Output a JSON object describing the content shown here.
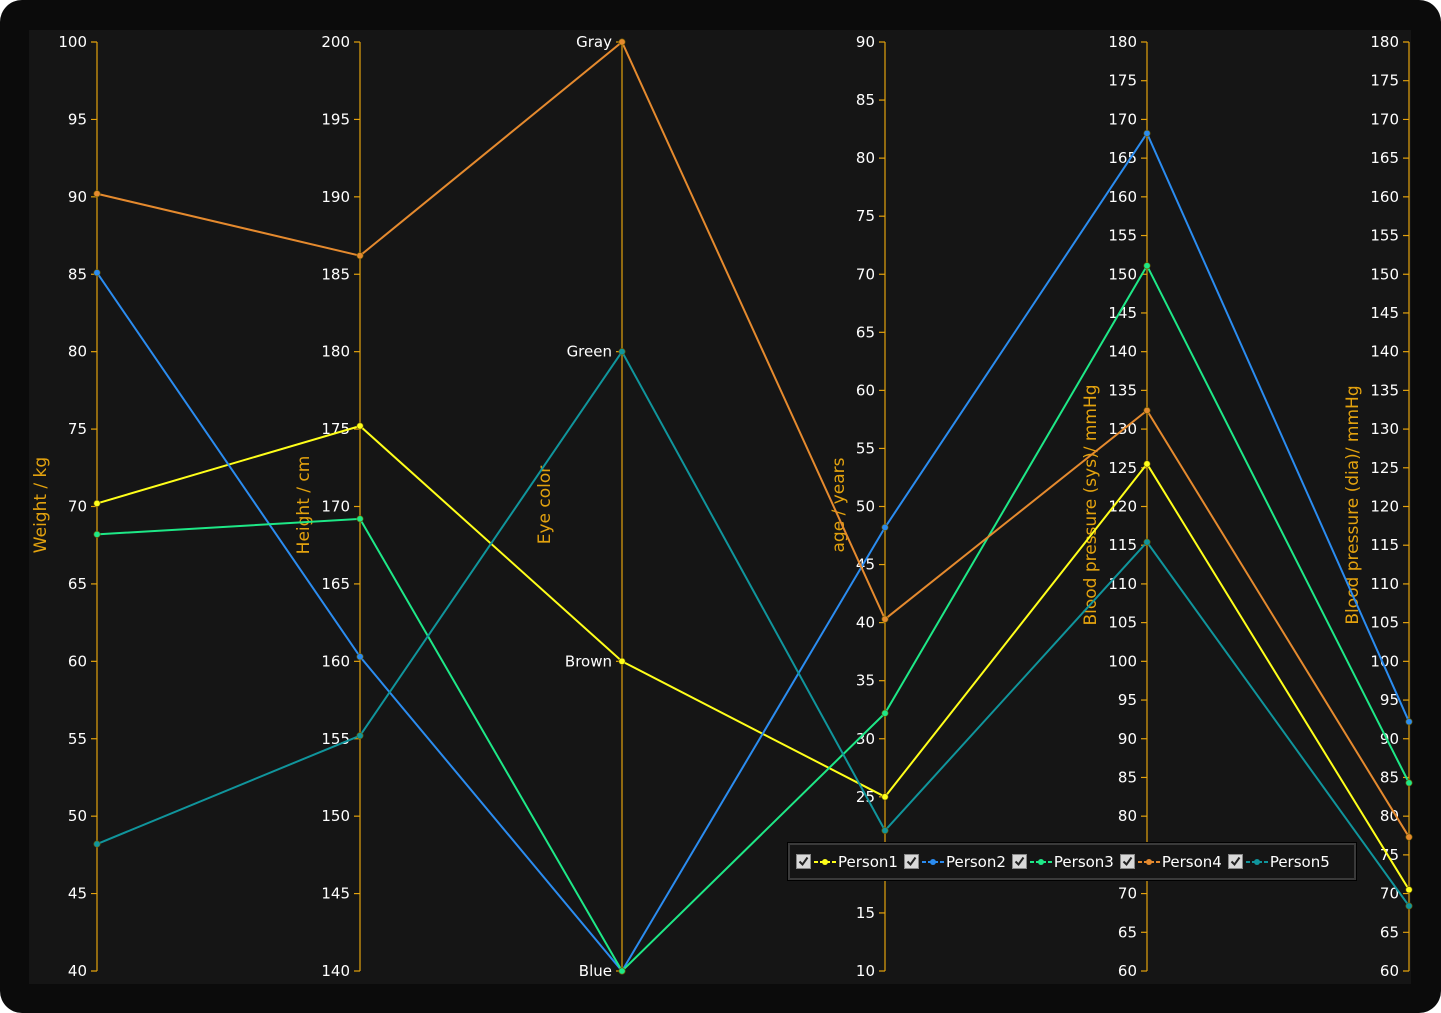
{
  "chart_data": {
    "type": "parallel-coordinates",
    "title": "",
    "axes": [
      {
        "title": "Weight / kg",
        "min": 40,
        "max": 100,
        "ticks": [
          "40",
          "45",
          "50",
          "55",
          "60",
          "65",
          "70",
          "75",
          "80",
          "85",
          "90",
          "95",
          "100"
        ]
      },
      {
        "title": "Height / cm",
        "min": 140,
        "max": 200,
        "ticks": [
          "140",
          "145",
          "150",
          "155",
          "160",
          "165",
          "170",
          "175",
          "180",
          "185",
          "190",
          "195",
          "200"
        ]
      },
      {
        "title": "Eye color",
        "categorical": true,
        "categories": [
          "Blue",
          "Brown",
          "Green",
          "Gray"
        ]
      },
      {
        "title": "age / years",
        "min": 10,
        "max": 90,
        "ticks": [
          "10",
          "15",
          "20",
          "25",
          "30",
          "35",
          "40",
          "45",
          "50",
          "55",
          "60",
          "65",
          "70",
          "75",
          "80",
          "85",
          "90"
        ]
      },
      {
        "title": "Blood pressure (sys)/ mmHg",
        "min": 60,
        "max": 180,
        "ticks": [
          "60",
          "65",
          "70",
          "75",
          "80",
          "85",
          "90",
          "95",
          "100",
          "105",
          "110",
          "115",
          "120",
          "125",
          "130",
          "135",
          "140",
          "145",
          "150",
          "155",
          "160",
          "165",
          "170",
          "175",
          "180"
        ]
      },
      {
        "title": "Blood pressure (dia)/ mmHg",
        "min": 60,
        "max": 180,
        "ticks": [
          "60",
          "65",
          "70",
          "75",
          "80",
          "85",
          "90",
          "95",
          "100",
          "105",
          "110",
          "115",
          "120",
          "125",
          "130",
          "135",
          "140",
          "145",
          "150",
          "155",
          "160",
          "165",
          "170",
          "175",
          "180"
        ]
      }
    ],
    "series": [
      {
        "name": "Person1",
        "color": "#ffff1a",
        "values": [
          70.2,
          175.2,
          "Brown",
          25,
          125.5,
          70.5
        ]
      },
      {
        "name": "Person2",
        "color": "#2b8cf0",
        "values": [
          85.1,
          160.3,
          "Blue",
          48.2,
          168.2,
          92.2
        ]
      },
      {
        "name": "Person3",
        "color": "#1ee887",
        "values": [
          68.2,
          169.2,
          "Blue",
          32.2,
          151.1,
          84.3
        ]
      },
      {
        "name": "Person4",
        "color": "#e58a2e",
        "values": [
          90.2,
          186.2,
          "Gray",
          40.3,
          132.4,
          77.3
        ]
      },
      {
        "name": "Person5",
        "color": "#10959c",
        "values": [
          48.2,
          155.2,
          "Green",
          22.1,
          115.4,
          68.4
        ]
      }
    ],
    "axis_color": "#e3a20e",
    "grid": false,
    "legend_position": "bottom-right"
  }
}
